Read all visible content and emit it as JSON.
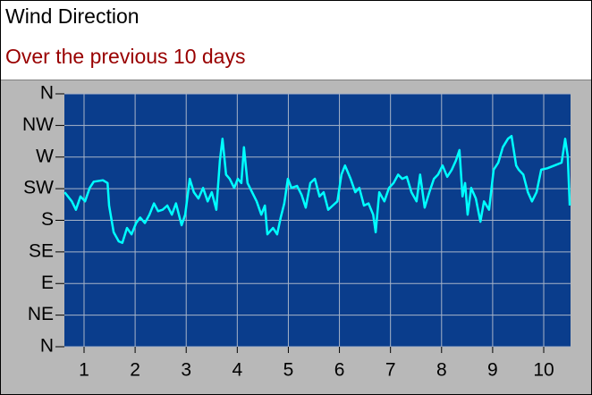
{
  "chart_data": {
    "type": "line",
    "title": "Wind Direction",
    "subtitle": "Over the previous 10 days",
    "color": "#00ffff",
    "grid": true,
    "xlim": [
      0.615,
      10.525
    ],
    "xticks": [
      1,
      2,
      3,
      4,
      5,
      6,
      7,
      8,
      9,
      10
    ],
    "ylim": [
      0,
      360
    ],
    "yticks": [
      {
        "value": 0,
        "label": "N"
      },
      {
        "value": 45,
        "label": "NE"
      },
      {
        "value": 90,
        "label": "E"
      },
      {
        "value": 135,
        "label": "SE"
      },
      {
        "value": 180,
        "label": "S"
      },
      {
        "value": 225,
        "label": "SW"
      },
      {
        "value": 270,
        "label": "W"
      },
      {
        "value": 315,
        "label": "NW"
      },
      {
        "value": 360,
        "label": "N"
      }
    ],
    "x": [
      0.62,
      0.76,
      0.84,
      0.93,
      1.02,
      1.11,
      1.19,
      1.37,
      1.46,
      1.49,
      1.58,
      1.68,
      1.75,
      1.84,
      1.93,
      2.02,
      2.1,
      2.19,
      2.28,
      2.37,
      2.45,
      2.54,
      2.63,
      2.72,
      2.8,
      2.91,
      2.98,
      3.07,
      3.15,
      3.24,
      3.33,
      3.42,
      3.5,
      3.59,
      3.66,
      3.71,
      3.78,
      3.85,
      3.94,
      4.01,
      4.08,
      4.13,
      4.2,
      4.29,
      4.38,
      4.47,
      4.54,
      4.59,
      4.7,
      4.78,
      4.85,
      4.92,
      4.99,
      5.06,
      5.17,
      5.26,
      5.34,
      5.43,
      5.52,
      5.61,
      5.69,
      5.78,
      5.87,
      5.96,
      6.04,
      6.11,
      6.22,
      6.31,
      6.39,
      6.48,
      6.57,
      6.66,
      6.71,
      6.78,
      6.88,
      6.97,
      7.06,
      7.15,
      7.23,
      7.32,
      7.41,
      7.51,
      7.58,
      7.67,
      7.76,
      7.85,
      7.93,
      8.02,
      8.11,
      8.2,
      8.28,
      8.35,
      8.41,
      8.46,
      8.51,
      8.58,
      8.67,
      8.76,
      8.83,
      8.93,
      9.02,
      9.11,
      9.2,
      9.3,
      9.37,
      9.46,
      9.51,
      9.6,
      9.69,
      9.77,
      9.86,
      9.95,
      10.07,
      10.21,
      10.35,
      10.42,
      10.47,
      10.51
    ],
    "values": [
      220,
      207,
      195,
      214,
      207,
      226,
      235,
      237,
      233,
      201,
      163,
      150,
      148,
      169,
      160,
      176,
      184,
      176,
      188,
      204,
      193,
      195,
      201,
      188,
      204,
      173,
      188,
      239,
      220,
      211,
      226,
      207,
      220,
      195,
      265,
      296,
      245,
      239,
      226,
      239,
      233,
      284,
      233,
      220,
      207,
      188,
      201,
      160,
      169,
      160,
      184,
      204,
      239,
      226,
      229,
      216,
      198,
      233,
      239,
      214,
      220,
      195,
      201,
      207,
      245,
      258,
      239,
      220,
      226,
      201,
      204,
      188,
      163,
      220,
      207,
      226,
      233,
      245,
      239,
      242,
      220,
      207,
      245,
      198,
      220,
      239,
      245,
      258,
      242,
      252,
      265,
      280,
      214,
      233,
      188,
      226,
      211,
      178,
      207,
      195,
      252,
      262,
      284,
      296,
      300,
      258,
      252,
      245,
      220,
      207,
      220,
      252,
      254,
      258,
      262,
      296,
      271,
      201
    ]
  }
}
